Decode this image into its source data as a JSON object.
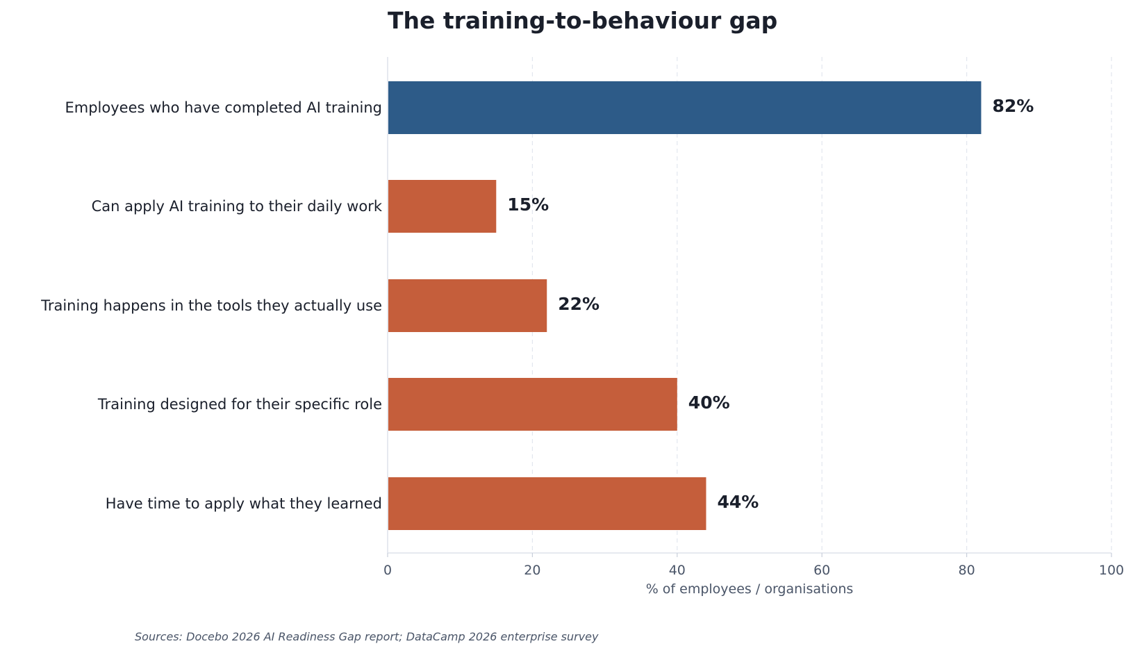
{
  "chart_data": {
    "type": "bar",
    "orientation": "horizontal",
    "title": "The training-to-behaviour gap",
    "categories": [
      "Employees who have completed AI training",
      "Can apply AI training to their daily work",
      "Training happens in the tools they actually use",
      "Training designed for their specific role",
      "Have time to apply what they learned"
    ],
    "values": [
      82,
      15,
      22,
      40,
      44
    ],
    "value_labels": [
      "82%",
      "15%",
      "22%",
      "40%",
      "44%"
    ],
    "bar_colors": [
      "#2d5b88",
      "#c55e3b",
      "#c55e3b",
      "#c55e3b",
      "#c55e3b"
    ],
    "xlabel": "% of employees / organisations",
    "xlim": [
      0,
      100
    ],
    "xticks": [
      0,
      20,
      40,
      60,
      80,
      100
    ],
    "grid": "vertical dashed",
    "legend": "none"
  },
  "footer": {
    "source": "Sources: Docebo 2026 AI Readiness Gap report; DataCamp 2026 enterprise survey"
  }
}
